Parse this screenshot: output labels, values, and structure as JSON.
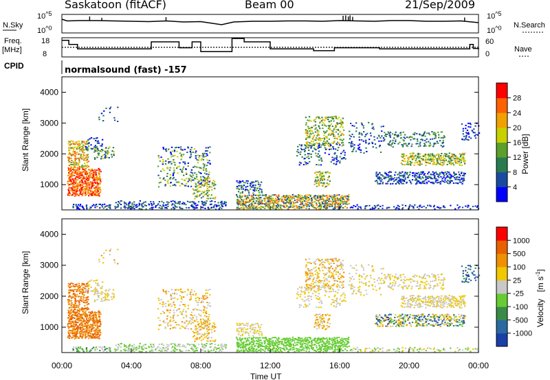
{
  "header": {
    "station": "Saskatoon (fitACF)",
    "beam": "Beam 00",
    "date": "21/Sep/2009"
  },
  "side_labels": {
    "nsky": "N.Sky",
    "freq_line1": "Freq.",
    "freq_line2": "[MHz]",
    "cpid": "CPID",
    "nsearch": "N.Search",
    "nave": "Nave"
  },
  "cpid_text": "normalsound (fast) -157",
  "axes": {
    "xlabel": "Time UT",
    "x_ticks": [
      "00:00",
      "04:00",
      "08:00",
      "12:00",
      "16:00",
      "20:00",
      "00:00"
    ],
    "ylabel": "Slant Range [km]",
    "y_ticks": [
      "1000",
      "2000",
      "3000",
      "4000"
    ],
    "nsky_ticks": [
      "10^5",
      "10^0"
    ],
    "nsearch_ticks": [
      "10^5",
      "10^0"
    ],
    "freq_ticks": [
      "18",
      "8"
    ],
    "nave_ticks": [
      "60",
      "0"
    ]
  },
  "colorbars": {
    "power": {
      "label": "Power [dB]",
      "ticks": [
        "28",
        "24",
        "20",
        "16",
        "12",
        "8",
        "4"
      ],
      "colors": [
        "#0000ff",
        "#1a4aa0",
        "#2a7a50",
        "#5aa02a",
        "#c8d000",
        "#f0a000",
        "#ff6000",
        "#ff0000"
      ]
    },
    "velocity": {
      "label_main": "Velocity",
      "label_unit": "[m s",
      "label_sup": "-1",
      "label_close": "]",
      "ticks": [
        "1000",
        "500",
        "100",
        "25",
        "-25",
        "-100",
        "-500",
        "-1000"
      ],
      "colors": [
        "#1a3fa8",
        "#2a6aa0",
        "#3a8a4a",
        "#66cc33",
        "#c8c8c8",
        "#f0c800",
        "#f09000",
        "#e86000",
        "#ff0000"
      ]
    }
  },
  "chart_data": [
    {
      "type": "line",
      "title": "N.Sky",
      "x_unit": "hours UT",
      "x": [
        0,
        0.3,
        1,
        2,
        3,
        4,
        5,
        6,
        7,
        8,
        9.2,
        9.9,
        11,
        12,
        13,
        14,
        15,
        16,
        17,
        18,
        19,
        20,
        21,
        22,
        23,
        24
      ],
      "values_log10": [
        3.8,
        3.3,
        3.4,
        3.4,
        3.3,
        3.2,
        3.1,
        3.3,
        3.0,
        3.1,
        2.2,
        3.0,
        3.2,
        3.2,
        3.3,
        3.3,
        3.2,
        3.4,
        3.3,
        3.2,
        3.4,
        3.4,
        3.2,
        3.2,
        3.3,
        2.8
      ],
      "ylim": [
        "10^0",
        "10^5"
      ]
    },
    {
      "type": "line",
      "title": "Freq. [MHz]",
      "x_unit": "hours UT",
      "x": [
        0,
        0.4,
        0.9,
        5.0,
        5.15,
        6.6,
        6.75,
        7.3,
        7.5,
        8.0,
        8.7,
        9.2,
        9.8,
        10.1,
        10.5,
        12.0,
        14.5,
        15.7,
        18.3,
        23.2,
        23.5,
        23.7,
        24
      ],
      "values": [
        16.6,
        14.4,
        12.0,
        12.0,
        15.8,
        15.8,
        12.6,
        12.6,
        15.8,
        10.5,
        10.5,
        10.5,
        17.6,
        17.6,
        15.8,
        12.0,
        11.0,
        12.6,
        12.0,
        12.0,
        14.4,
        12.2,
        11.6
      ],
      "dotted_ref": "N.Search",
      "ylim": [
        8,
        18
      ]
    }
  ],
  "panels": {
    "power_cells_per_row": 264,
    "velocity_cells_per_row": 264
  }
}
